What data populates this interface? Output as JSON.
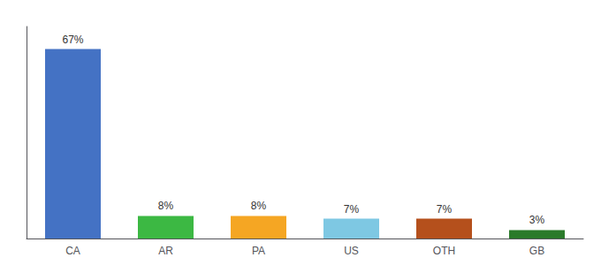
{
  "chart_data": {
    "type": "bar",
    "categories": [
      "CA",
      "AR",
      "PA",
      "US",
      "OTH",
      "GB"
    ],
    "values": [
      67,
      8,
      8,
      7,
      7,
      3
    ],
    "value_labels": [
      "67%",
      "8%",
      "8%",
      "7%",
      "7%",
      "3%"
    ],
    "colors": [
      "#4472c4",
      "#3cb843",
      "#f5a623",
      "#7ec8e3",
      "#b5501c",
      "#2a7a2a"
    ],
    "ylim": [
      0,
      75
    ],
    "data_labels": true,
    "tick_labels": "x",
    "grid": false
  }
}
